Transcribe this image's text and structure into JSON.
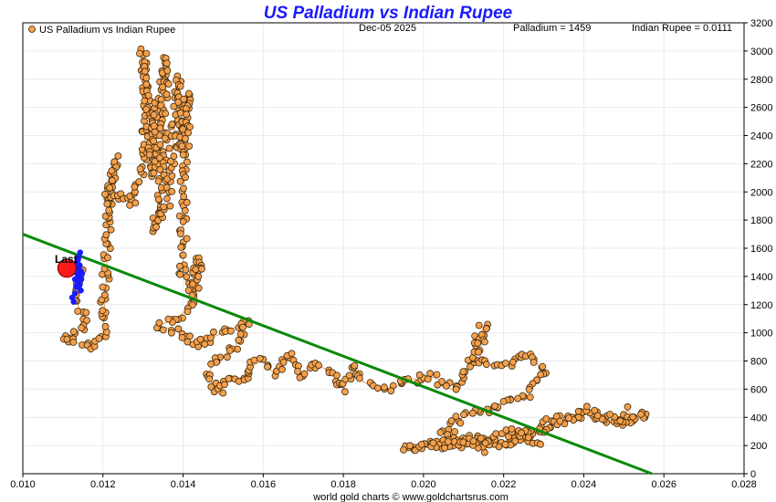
{
  "chart_data": {
    "type": "scatter",
    "title": "US Palladium vs Indian Rupee",
    "date": "Dec-05  2025",
    "legend": "US Palladium vs Indian Rupee",
    "readout_palladium": "Palladium = 1459",
    "readout_rupee": "Indian Rupee = 0.0111",
    "last_label": "Last",
    "footer": "world gold charts © www.goldchartsrus.com",
    "xlim": [
      0.01,
      0.028
    ],
    "ylim": [
      0,
      3200
    ],
    "x_ticks": [
      "0.010",
      "0.012",
      "0.014",
      "0.016",
      "0.018",
      "0.020",
      "0.022",
      "0.024",
      "0.026",
      "0.028"
    ],
    "y_ticks": [
      "0",
      "200",
      "400",
      "600",
      "800",
      "1000",
      "1200",
      "1400",
      "1600",
      "1800",
      "2000",
      "2200",
      "2400",
      "2600",
      "2800",
      "3000",
      "3200"
    ],
    "y_tick_display": [
      "0",
      "200",
      "400",
      "600",
      "800",
      "1000",
      "1200",
      "1400",
      "1600",
      "1800",
      "2000",
      "2200",
      "2400",
      "2600",
      "2800",
      "3000",
      "3200"
    ],
    "trend_line": {
      "x": [
        0.01,
        0.0257
      ],
      "y": [
        1700,
        0
      ]
    },
    "last_point": {
      "x": 0.0111,
      "y": 1459
    },
    "recent_points": [
      [
        0.01123,
        1250
      ],
      [
        0.01127,
        1220
      ],
      [
        0.0113,
        1280
      ],
      [
        0.01133,
        1330
      ],
      [
        0.0113,
        1380
      ],
      [
        0.01135,
        1420
      ],
      [
        0.01138,
        1460
      ],
      [
        0.01135,
        1500
      ],
      [
        0.0114,
        1540
      ],
      [
        0.01143,
        1570
      ],
      [
        0.01138,
        1520
      ],
      [
        0.01142,
        1480
      ],
      [
        0.01145,
        1440
      ],
      [
        0.0114,
        1400
      ],
      [
        0.01136,
        1360
      ],
      [
        0.0114,
        1320
      ],
      [
        0.01145,
        1300
      ],
      [
        0.01142,
        1340
      ],
      [
        0.01146,
        1380
      ],
      [
        0.01148,
        1420
      ]
    ],
    "series_path": [
      [
        0.0115,
        1450
      ],
      [
        0.0113,
        1250
      ],
      [
        0.0116,
        1050
      ],
      [
        0.011,
        950
      ],
      [
        0.0118,
        900
      ],
      [
        0.012,
        1000
      ],
      [
        0.0121,
        1500
      ],
      [
        0.0122,
        2000
      ],
      [
        0.0123,
        2250
      ],
      [
        0.0121,
        1900
      ],
      [
        0.0125,
        2000
      ],
      [
        0.0127,
        1900
      ],
      [
        0.013,
        2150
      ],
      [
        0.0131,
        2600
      ],
      [
        0.013,
        3000
      ],
      [
        0.0132,
        2400
      ],
      [
        0.0133,
        2100
      ],
      [
        0.0134,
        2700
      ],
      [
        0.0136,
        2950
      ],
      [
        0.0135,
        2300
      ],
      [
        0.0133,
        1700
      ],
      [
        0.0136,
        1900
      ],
      [
        0.0138,
        2500
      ],
      [
        0.0139,
        2800
      ],
      [
        0.014,
        2300
      ],
      [
        0.0141,
        2700
      ],
      [
        0.014,
        1800
      ],
      [
        0.014,
        1400
      ],
      [
        0.0142,
        1300
      ],
      [
        0.0144,
        1550
      ],
      [
        0.0143,
        1200
      ],
      [
        0.0138,
        1100
      ],
      [
        0.0134,
        1050
      ],
      [
        0.014,
        1000
      ],
      [
        0.0143,
        900
      ],
      [
        0.0146,
        950
      ],
      [
        0.015,
        1000
      ],
      [
        0.0154,
        1050
      ],
      [
        0.0156,
        1100
      ],
      [
        0.0153,
        900
      ],
      [
        0.0148,
        800
      ],
      [
        0.0146,
        700
      ],
      [
        0.0149,
        560
      ],
      [
        0.0152,
        700
      ],
      [
        0.0155,
        650
      ],
      [
        0.0156,
        750
      ],
      [
        0.016,
        800
      ],
      [
        0.0163,
        700
      ],
      [
        0.0166,
        850
      ],
      [
        0.0168,
        750
      ],
      [
        0.017,
        700
      ],
      [
        0.0173,
        780
      ],
      [
        0.0177,
        720
      ],
      [
        0.018,
        600
      ],
      [
        0.0183,
        780
      ],
      [
        0.0185,
        650
      ],
      [
        0.0188,
        620
      ],
      [
        0.0192,
        600
      ],
      [
        0.0196,
        650
      ],
      [
        0.02,
        700
      ],
      [
        0.0203,
        680
      ],
      [
        0.0206,
        620
      ],
      [
        0.0208,
        580
      ],
      [
        0.0212,
        800
      ],
      [
        0.0215,
        1050
      ],
      [
        0.0214,
        800
      ],
      [
        0.0219,
        750
      ],
      [
        0.0223,
        820
      ],
      [
        0.0227,
        850
      ],
      [
        0.023,
        700
      ],
      [
        0.0225,
        550
      ],
      [
        0.022,
        500
      ],
      [
        0.0216,
        450
      ],
      [
        0.0212,
        420
      ],
      [
        0.0208,
        380
      ],
      [
        0.0205,
        300
      ],
      [
        0.021,
        250
      ],
      [
        0.0215,
        230
      ],
      [
        0.022,
        200
      ],
      [
        0.0225,
        250
      ],
      [
        0.0228,
        300
      ],
      [
        0.023,
        350
      ],
      [
        0.0234,
        420
      ],
      [
        0.0238,
        400
      ],
      [
        0.0242,
        430
      ],
      [
        0.0245,
        380
      ],
      [
        0.0248,
        350
      ],
      [
        0.0251,
        450
      ],
      [
        0.0253,
        380
      ],
      [
        0.0256,
        420
      ],
      [
        0.025,
        360
      ],
      [
        0.0245,
        400
      ],
      [
        0.024,
        450
      ],
      [
        0.0235,
        380
      ],
      [
        0.023,
        320
      ],
      [
        0.0226,
        280
      ],
      [
        0.0222,
        240
      ],
      [
        0.0218,
        200
      ],
      [
        0.0215,
        180
      ],
      [
        0.021,
        210
      ],
      [
        0.0205,
        220
      ],
      [
        0.02,
        200
      ],
      [
        0.0195,
        190
      ],
      [
        0.0205,
        190
      ],
      [
        0.0212,
        230
      ],
      [
        0.0218,
        250
      ],
      [
        0.0223,
        300
      ],
      [
        0.023,
        200
      ]
    ],
    "colors": {
      "marker_fill": "#f5a04c",
      "marker_edge": "#3a2a10",
      "line": "#f0a050",
      "trend": "#0a8a0a",
      "recent": "#1a1aff",
      "last": "#ff1a1a",
      "title": "#1a1aff",
      "grid": "#e6ecf2"
    }
  }
}
